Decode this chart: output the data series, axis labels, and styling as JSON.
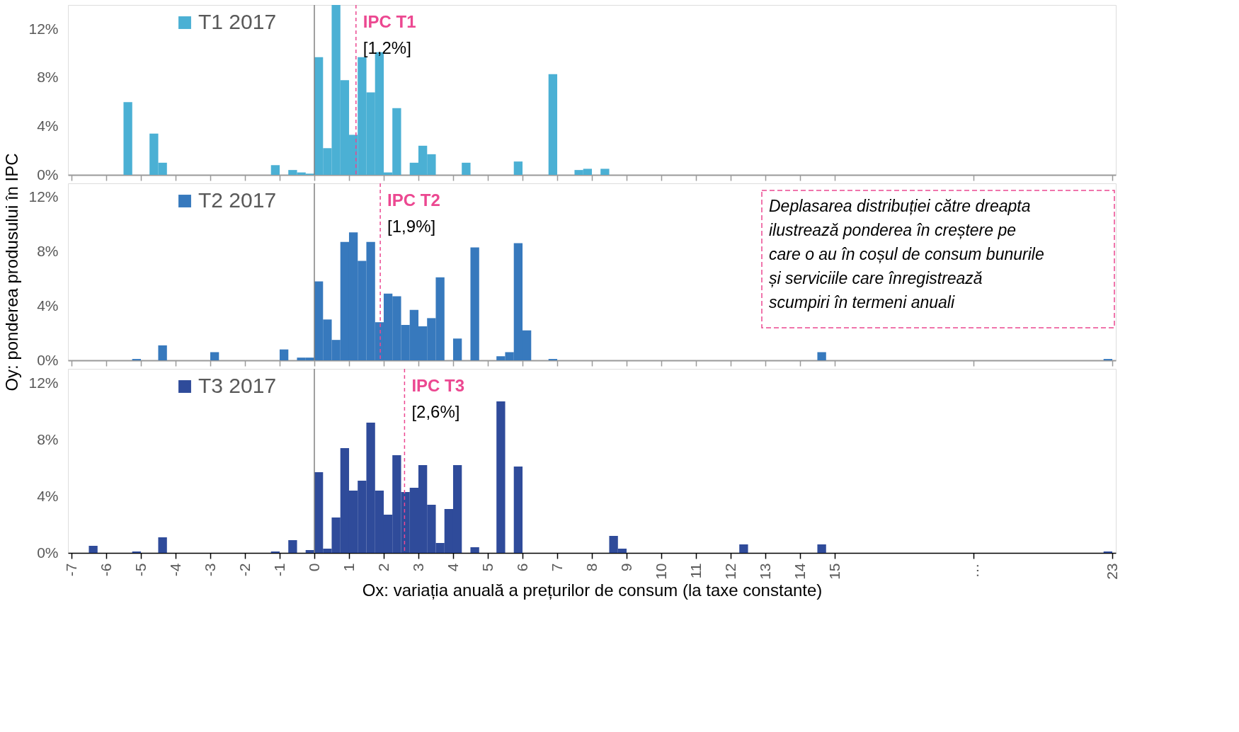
{
  "chart_data": [
    {
      "type": "bar",
      "xlim": [
        -7,
        23
      ],
      "ylim": [
        0,
        14
      ],
      "xticks": [
        -7,
        -6,
        -5,
        -4,
        -3,
        -2,
        -1,
        0,
        1,
        2,
        3,
        4,
        5,
        6,
        7,
        8,
        9,
        10,
        11,
        12,
        13,
        14,
        15,
        19,
        23
      ],
      "yticks": [
        {
          "value": 0,
          "label": "0%"
        },
        {
          "value": 4,
          "label": "4%"
        },
        {
          "value": 8,
          "label": "8%"
        },
        {
          "value": 12,
          "label": "12%"
        }
      ],
      "tick_labels": "y",
      "grid": false,
      "legend": "top left",
      "series": [
        {
          "name": "T1 2017",
          "color": "#4bb0d4",
          "x": [
            -5.375,
            -4.625,
            -4.375,
            -1.125,
            -0.625,
            -0.375,
            -0.125,
            0.125,
            0.375,
            0.625,
            0.875,
            1.125,
            1.375,
            1.625,
            1.875,
            2.125,
            2.375,
            2.875,
            3.125,
            3.375,
            4.375,
            5.875,
            6.875,
            7.625,
            7.875,
            8.375
          ],
          "values": [
            6.0,
            3.4,
            1.0,
            0.8,
            0.4,
            0.2,
            0.1,
            9.7,
            2.2,
            14.0,
            7.8,
            3.3,
            9.7,
            6.8,
            10.1,
            0.2,
            5.5,
            1.0,
            2.4,
            1.7,
            1.0,
            1.1,
            8.3,
            0.4,
            0.5,
            0.5
          ]
        }
      ],
      "ref_lines": [
        {
          "axis": "x",
          "value": 0,
          "color": "#808080",
          "line_style": "solid"
        },
        {
          "axis": "x",
          "value": 1.2,
          "label": "IPC T1",
          "color": "#ec4891",
          "line_style": "dashed"
        }
      ],
      "annotations": [
        "[1,2%]"
      ]
    },
    {
      "type": "bar",
      "xlim": [
        -7,
        23
      ],
      "ylim": [
        0,
        13
      ],
      "xticks": [
        -7,
        -6,
        -5,
        -4,
        -3,
        -2,
        -1,
        0,
        1,
        2,
        3,
        4,
        5,
        6,
        7,
        8,
        9,
        10,
        11,
        12,
        13,
        14,
        15,
        19,
        23
      ],
      "yticks": [
        {
          "value": 0,
          "label": "0%"
        },
        {
          "value": 4,
          "label": "4%"
        },
        {
          "value": 8,
          "label": "8%"
        },
        {
          "value": 12,
          "label": "12%"
        }
      ],
      "tick_labels": "y",
      "grid": false,
      "legend": "top left",
      "ylabel": "Oy: ponderea produsului în IPC",
      "series": [
        {
          "name": "T2 2017",
          "color": "#3779bd",
          "x": [
            -5.125,
            -4.375,
            -2.875,
            -0.875,
            -0.375,
            -0.125,
            0.125,
            0.375,
            0.625,
            0.875,
            1.125,
            1.375,
            1.625,
            1.875,
            2.125,
            2.375,
            2.625,
            2.875,
            3.125,
            3.375,
            3.625,
            4.125,
            4.625,
            5.375,
            5.625,
            5.875,
            6.125,
            6.875,
            14.625,
            22.875
          ],
          "values": [
            0.1,
            1.1,
            0.6,
            0.8,
            0.2,
            0.2,
            5.8,
            3.0,
            1.5,
            8.7,
            9.4,
            7.3,
            8.7,
            2.8,
            4.9,
            4.7,
            2.6,
            3.7,
            2.5,
            3.1,
            6.1,
            1.6,
            8.3,
            0.3,
            0.6,
            8.6,
            2.2,
            0.1,
            0.6,
            0.1
          ]
        }
      ],
      "ref_lines": [
        {
          "axis": "x",
          "value": 0,
          "color": "#808080",
          "line_style": "solid"
        },
        {
          "axis": "x",
          "value": 1.9,
          "label": "IPC T2",
          "color": "#ec4891",
          "line_style": "dashed"
        }
      ],
      "annotations": [
        "[1,9%]",
        "Deplasarea distribuției către dreapta\nilustrează ponderea în creștere pe\ncare o au în coșul de consum bunurile\nși serviciile care înregistrează\nscumpiri în termeni anuali"
      ]
    },
    {
      "type": "bar",
      "xlim": [
        -7,
        23
      ],
      "ylim": [
        0,
        13
      ],
      "xticks": [
        -7,
        -6,
        -5,
        -4,
        -3,
        -2,
        -1,
        0,
        1,
        2,
        3,
        4,
        5,
        6,
        7,
        8,
        9,
        10,
        11,
        12,
        13,
        14,
        15,
        {
          "value": 19,
          "label": "…"
        },
        23
      ],
      "yticks": [
        {
          "value": 0,
          "label": "0%"
        },
        {
          "value": 4,
          "label": "4%"
        },
        {
          "value": 8,
          "label": "8%"
        },
        {
          "value": 12,
          "label": "12%"
        }
      ],
      "grid": false,
      "legend": "top left",
      "xlabel": "Ox: variația anuală a prețurilor de consum (la taxe constante)",
      "series": [
        {
          "name": "T3 2017",
          "color": "#2f4b9a",
          "x": [
            -6.375,
            -5.125,
            -4.375,
            -1.125,
            -0.625,
            -0.125,
            0.125,
            0.375,
            0.625,
            0.875,
            1.125,
            1.375,
            1.625,
            1.875,
            2.125,
            2.375,
            2.625,
            2.875,
            3.125,
            3.375,
            3.625,
            3.875,
            4.125,
            4.625,
            5.375,
            5.875,
            8.625,
            8.875,
            12.375,
            14.625,
            22.875
          ],
          "values": [
            0.5,
            0.1,
            1.1,
            0.1,
            0.9,
            0.2,
            5.7,
            0.3,
            2.5,
            7.4,
            4.4,
            5.1,
            9.2,
            4.4,
            2.7,
            6.9,
            4.3,
            4.6,
            6.2,
            3.4,
            0.7,
            3.1,
            6.2,
            0.4,
            10.7,
            6.1,
            1.2,
            0.3,
            0.6,
            0.6,
            0.1
          ]
        }
      ],
      "ref_lines": [
        {
          "axis": "x",
          "value": 0,
          "color": "#808080",
          "line_style": "solid"
        },
        {
          "axis": "x",
          "value": 2.6,
          "label": "IPC T3",
          "color": "#ec4891",
          "line_style": "dashed"
        }
      ],
      "annotations": [
        "[2,6%]"
      ]
    }
  ]
}
